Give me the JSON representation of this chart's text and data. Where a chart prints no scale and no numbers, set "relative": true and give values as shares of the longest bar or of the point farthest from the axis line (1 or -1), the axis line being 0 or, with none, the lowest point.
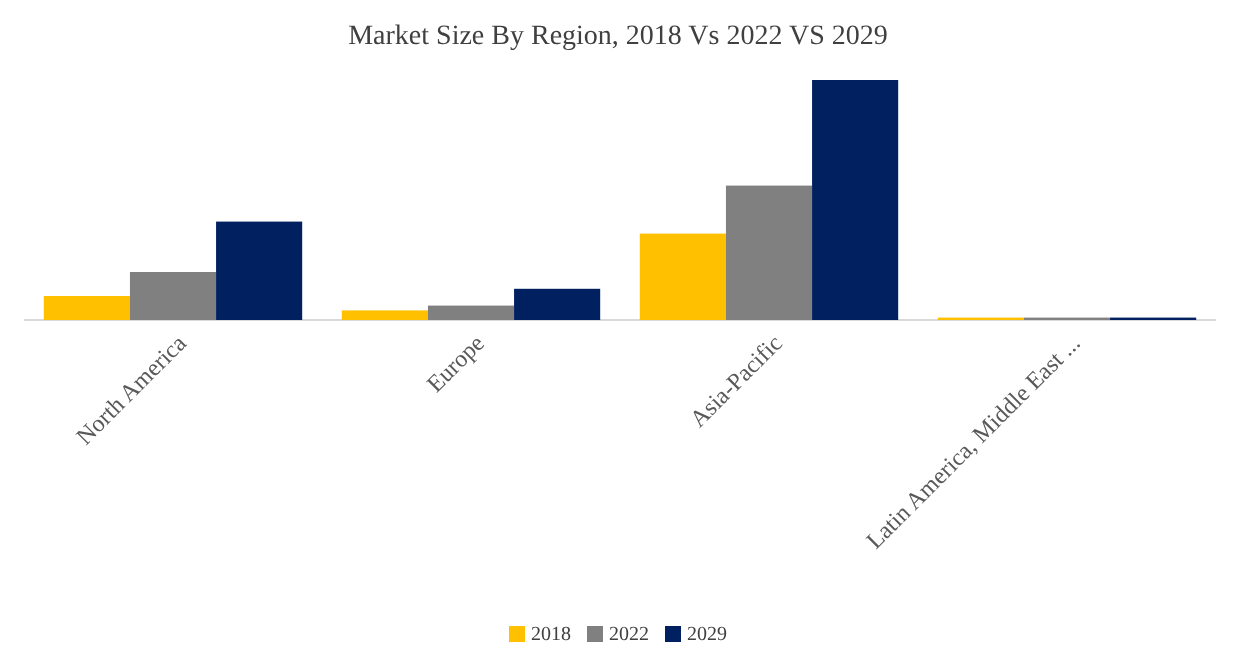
{
  "chart_data": {
    "type": "bar",
    "title": "Market Size By Region, 2018 Vs 2022 VS 2029",
    "relative": true,
    "categories": [
      "North America",
      "Europe",
      "Asia-Pacific",
      "Latin America, Middle East ..."
    ],
    "series": [
      {
        "name": "2018",
        "color": "#ffc000",
        "values": [
          0.1,
          0.04,
          0.36,
          0.01
        ]
      },
      {
        "name": "2022",
        "color": "#808080",
        "values": [
          0.2,
          0.06,
          0.56,
          0.01
        ]
      },
      {
        "name": "2029",
        "color": "#002060",
        "values": [
          0.41,
          0.13,
          1,
          0.01
        ]
      }
    ],
    "legend": "bottom"
  }
}
